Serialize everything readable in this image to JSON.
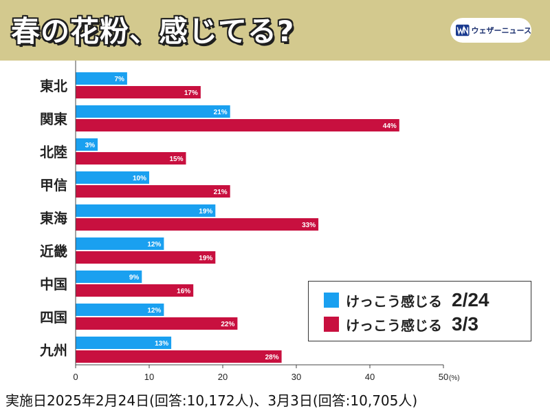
{
  "header": {
    "title": "春の花粉、感じてる?",
    "logo_text": "ウェザーニュース",
    "logo_icon": "wn-logo-icon"
  },
  "colors": {
    "header_bg": "#d3c98e",
    "series_1": "#1aa0f0",
    "series_2": "#c8103f"
  },
  "chart_data": {
    "type": "bar",
    "orientation": "horizontal",
    "categories": [
      "東北",
      "関東",
      "北陸",
      "甲信",
      "東海",
      "近畿",
      "中国",
      "四国",
      "九州"
    ],
    "series": [
      {
        "name": "けっこう感じる 2/24",
        "values": [
          7,
          21,
          3,
          10,
          19,
          12,
          9,
          12,
          13
        ]
      },
      {
        "name": "けっこう感じる 3/3",
        "values": [
          17,
          44,
          15,
          21,
          33,
          19,
          16,
          22,
          28
        ]
      }
    ],
    "xlim": [
      0,
      50
    ],
    "xticks": [
      "0",
      "10",
      "20",
      "30",
      "40",
      "50"
    ],
    "x_unit": "(%)",
    "value_suffix": "%",
    "grid": false,
    "legend_position": "bottom-right"
  },
  "legend": {
    "items": [
      {
        "label": "けっこう感じる",
        "date": "2/24"
      },
      {
        "label": "けっこう感じる",
        "date": "3/3"
      }
    ]
  },
  "footer": {
    "note": "実施日2025年2月24日(回答:10,172人)、3月3日(回答:10,705人)"
  }
}
